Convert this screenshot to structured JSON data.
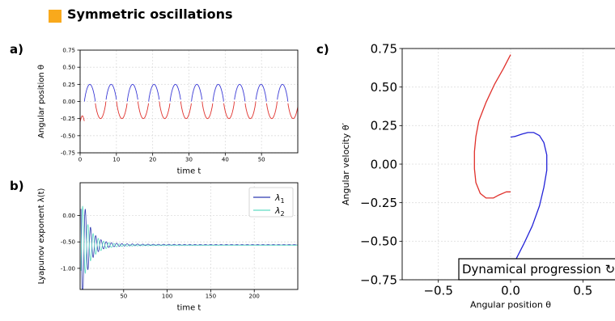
{
  "header": {
    "title": "Symmetric oscillations",
    "accent_color": "#f9a91c"
  },
  "chart_data": [
    {
      "id": "a",
      "panel_label": "a)",
      "type": "line",
      "xlabel": "time t",
      "ylabel": "Angular position θ",
      "xlim": [
        0,
        60
      ],
      "ylim": [
        -0.75,
        0.75
      ],
      "xticks": [
        0,
        10,
        20,
        30,
        40,
        50
      ],
      "yticks": [
        0.75,
        0.5,
        0.25,
        0.0,
        -0.25,
        -0.5,
        -0.75
      ],
      "ytick_labels": [
        "0.75",
        "0.50",
        "0.25",
        "0.00",
        "-0.25",
        "-0.50",
        "-0.75"
      ],
      "grid": true,
      "description": "Oscillation between about +0.25 (blue, positive segments) and -0.25 (red, negative segments), period ≈ 5.9",
      "signal": {
        "amplitude": 0.25,
        "period": 5.9,
        "start_value": -0.25,
        "end_value": 0.03
      },
      "series": [
        {
          "color": "#3a3ad6",
          "sign": "positive"
        },
        {
          "color": "#e0302b",
          "sign": "negative"
        }
      ]
    },
    {
      "id": "b",
      "panel_label": "b)",
      "type": "line",
      "xlabel": "time t",
      "ylabel": "Lyapunov exponent λ(t)",
      "xlim": [
        0,
        250
      ],
      "ylim": [
        -1.4,
        0.62
      ],
      "xticks": [
        50,
        100,
        150,
        200
      ],
      "yticks": [
        0.0,
        -0.5,
        -1.0
      ],
      "ytick_labels": [
        "0.00",
        "-0.50",
        "-1.00"
      ],
      "grid": true,
      "legend": "top-right",
      "series": [
        {
          "label_base": "λ",
          "label_sub": "1",
          "color": "#2f3ab0",
          "asymptote": -0.56,
          "initial_deviation": 1.15,
          "decay_time": 8,
          "oscillation_period": 6.0
        },
        {
          "label_base": "λ",
          "label_sub": "2",
          "color": "#5fdcc4",
          "asymptote": -0.56,
          "initial_deviation": -0.8,
          "decay_time": 10,
          "oscillation_period": 6.0
        }
      ]
    },
    {
      "id": "c",
      "panel_label": "c)",
      "type": "line",
      "xlabel": "Angular position θ",
      "ylabel": "Angular velocity θ′",
      "xlim": [
        -0.75,
        0.75
      ],
      "ylim": [
        -0.75,
        0.75
      ],
      "xticks": [
        -0.5,
        0.0,
        0.5
      ],
      "xtick_labels": [
        "−0.5",
        "0.0",
        "0.5"
      ],
      "yticks": [
        0.75,
        0.5,
        0.25,
        0.0,
        -0.25,
        -0.5,
        -0.75
      ],
      "ytick_labels": [
        "0.75",
        "0.50",
        "0.25",
        "0.00",
        "−0.25",
        "−0.50",
        "−0.75"
      ],
      "grid": true,
      "annotation": {
        "text": "Dynamical progression ↻"
      },
      "series": [
        {
          "color": "#e0302b",
          "points": [
            [
              0.0,
              0.71
            ],
            [
              -0.05,
              0.62
            ],
            [
              -0.11,
              0.52
            ],
            [
              -0.17,
              0.4
            ],
            [
              -0.22,
              0.28
            ],
            [
              -0.24,
              0.18
            ],
            [
              -0.25,
              0.08
            ],
            [
              -0.25,
              -0.03
            ],
            [
              -0.24,
              -0.12
            ],
            [
              -0.21,
              -0.19
            ],
            [
              -0.17,
              -0.22
            ],
            [
              -0.12,
              -0.22
            ],
            [
              -0.08,
              -0.2
            ],
            [
              -0.03,
              -0.18
            ],
            [
              0.0,
              -0.18
            ]
          ]
        },
        {
          "color": "#2323d8",
          "points": [
            [
              0.0,
              0.175
            ],
            [
              0.03,
              0.18
            ],
            [
              0.08,
              0.195
            ],
            [
              0.12,
              0.205
            ],
            [
              0.16,
              0.205
            ],
            [
              0.2,
              0.185
            ],
            [
              0.23,
              0.14
            ],
            [
              0.25,
              0.06
            ],
            [
              0.25,
              -0.04
            ],
            [
              0.23,
              -0.15
            ],
            [
              0.2,
              -0.27
            ],
            [
              0.15,
              -0.4
            ],
            [
              0.09,
              -0.52
            ],
            [
              0.03,
              -0.63
            ],
            [
              -0.005,
              -0.7
            ]
          ]
        }
      ]
    }
  ]
}
